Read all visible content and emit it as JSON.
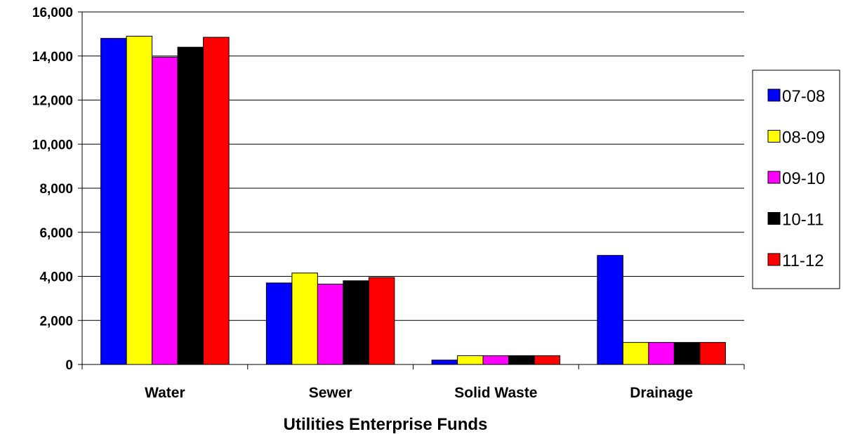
{
  "chart_data": {
    "type": "bar",
    "title": "",
    "xlabel": "Utilities Enterprise Funds",
    "ylabel": "",
    "categories": [
      "Water",
      "Sewer",
      "Solid Waste",
      "Drainage"
    ],
    "series": [
      {
        "name": "07-08",
        "color": "#0000ff",
        "values": [
          14800,
          3700,
          200,
          4950
        ]
      },
      {
        "name": "08-09",
        "color": "#ffff00",
        "values": [
          14900,
          4150,
          400,
          1000
        ]
      },
      {
        "name": "09-10",
        "color": "#ff00ff",
        "values": [
          13950,
          3650,
          400,
          1000
        ]
      },
      {
        "name": "10-11",
        "color": "#000000",
        "values": [
          14400,
          3800,
          400,
          1000
        ]
      },
      {
        "name": "11-12",
        "color": "#ff0000",
        "values": [
          14850,
          3950,
          400,
          1000
        ]
      }
    ],
    "ylim": [
      0,
      16000
    ],
    "yticks": [
      0,
      2000,
      4000,
      6000,
      8000,
      10000,
      12000,
      14000,
      16000
    ],
    "ytick_labels": [
      "0",
      "2,000",
      "4,000",
      "6,000",
      "8,000",
      "10,000",
      "12,000",
      "14,000",
      "16,000"
    ],
    "grid": true,
    "legend": "right"
  }
}
